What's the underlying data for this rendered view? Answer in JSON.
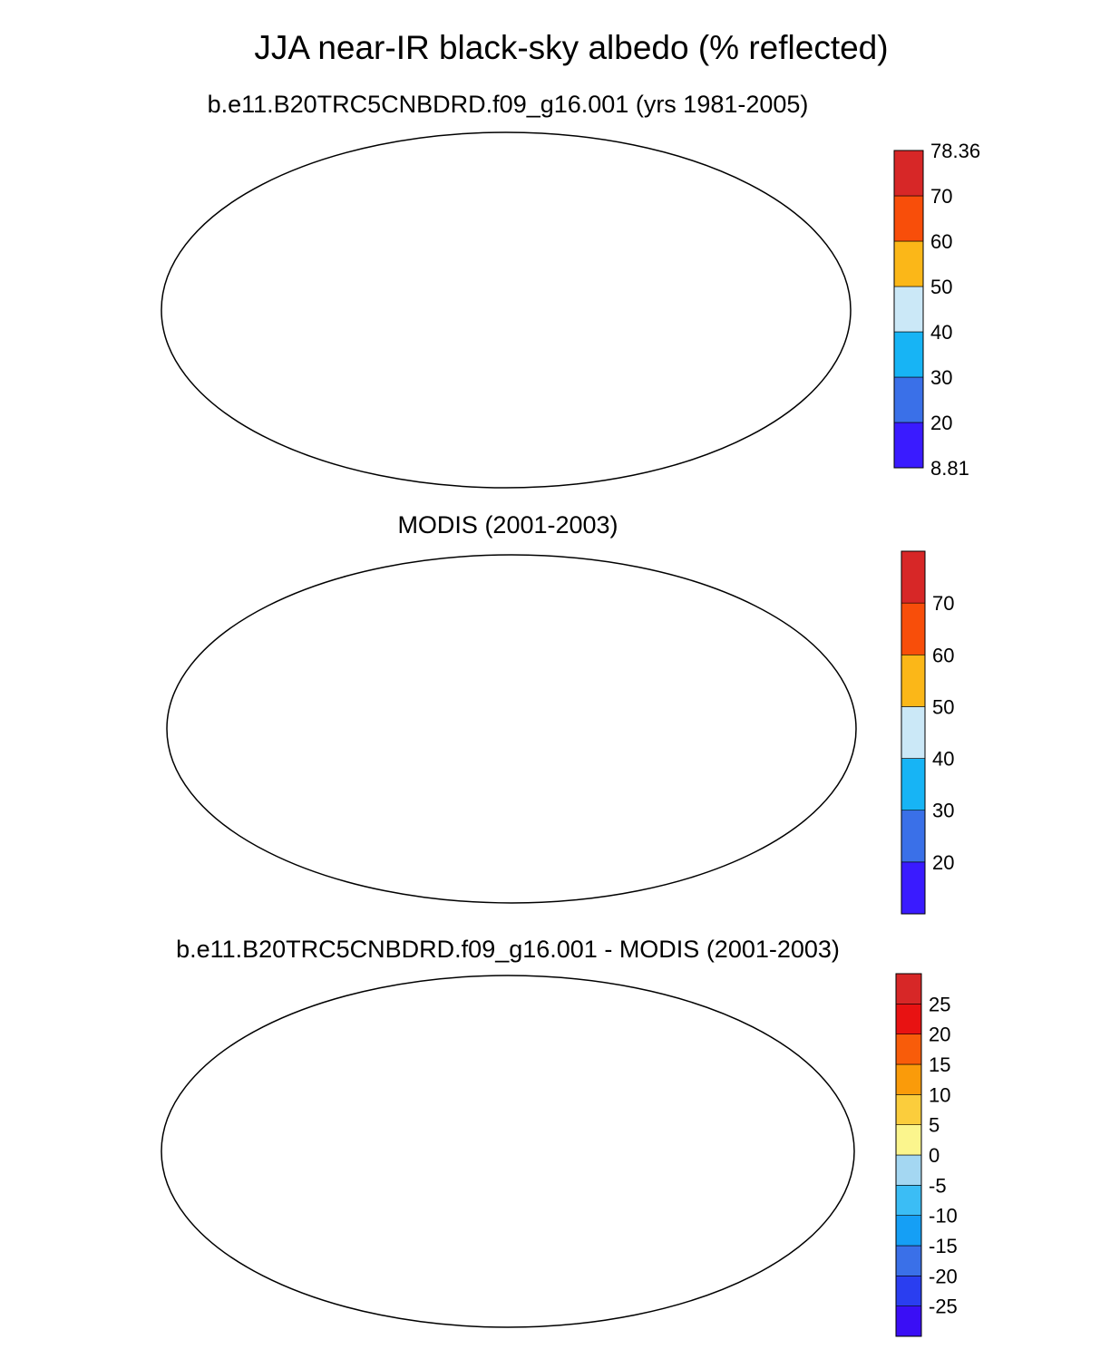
{
  "title": "JJA near-IR black-sky albedo (% reflected)",
  "panels": [
    {
      "id": "model",
      "subtitle": "b.e11.B20TRC5CNBDRD.f09_g16.001 (yrs 1981-2005)",
      "colorbar": {
        "colors": [
          "#3a1bff",
          "#3a70e8",
          "#17b4f5",
          "#cbe8f7",
          "#fbb718",
          "#f84e0a",
          "#d72727"
        ],
        "labels": [
          "8.81",
          "20",
          "30",
          "40",
          "50",
          "60",
          "70",
          "78.36"
        ],
        "end_labels": true
      }
    },
    {
      "id": "modis",
      "subtitle": "MODIS (2001-2003)",
      "colorbar": {
        "colors": [
          "#3a1bff",
          "#3a70e8",
          "#17b4f5",
          "#cbe8f7",
          "#fbb718",
          "#f84e0a",
          "#d72727"
        ],
        "labels": [
          "20",
          "30",
          "40",
          "50",
          "60",
          "70"
        ],
        "end_labels": false
      }
    },
    {
      "id": "diff",
      "subtitle": "b.e11.B20TRC5CNBDRD.f09_g16.001 - MODIS (2001-2003)",
      "colorbar": {
        "colors": [
          "#3a0ef5",
          "#2a3ef0",
          "#3a70e8",
          "#159ff5",
          "#3bbdf5",
          "#a4d7f2",
          "#fbf58d",
          "#fbcd3c",
          "#fa9b0a",
          "#f85c0a",
          "#e81212",
          "#d72727"
        ],
        "labels": [
          "-25",
          "-20",
          "-15",
          "-10",
          "-5",
          "0",
          "5",
          "10",
          "15",
          "20",
          "25"
        ],
        "end_labels": false
      }
    }
  ]
}
